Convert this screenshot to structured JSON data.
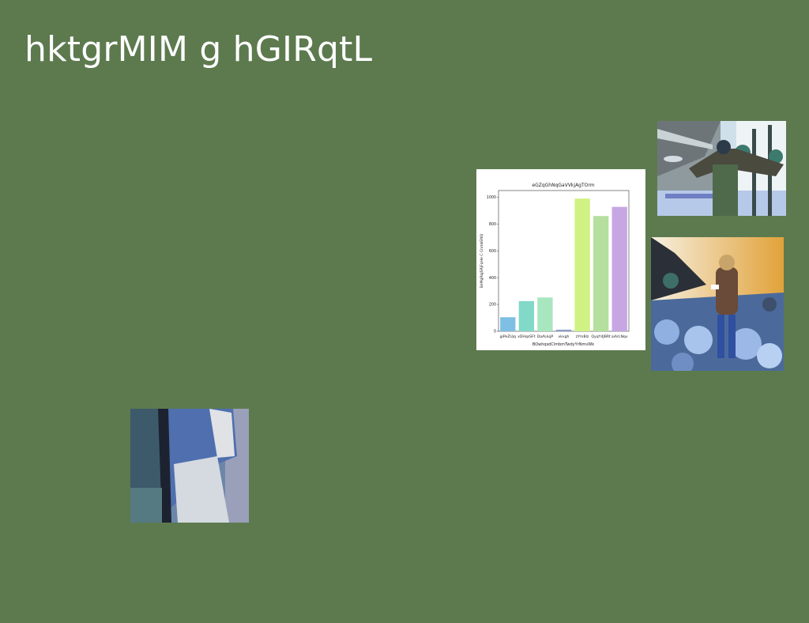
{
  "slide": {
    "title": "hktgrMIM g hGIRqtL"
  },
  "images": [
    {
      "name": "bridge-photo",
      "kind": "photo"
    },
    {
      "name": "desert-hiker-photo",
      "kind": "photo"
    },
    {
      "name": "figure-photo",
      "kind": "photo"
    }
  ],
  "chart_data": {
    "type": "bar",
    "title": "eGZqGhNqGaVVkjAgTOrm",
    "xlabel": "BOwhqsdClmbmTwdyYrNmvWk",
    "ylabel": "BsMgRqjSRjFqHe C CnmkENQ",
    "categories": [
      "giPeZUjq",
      "xDHqsSFt",
      "DaALkqP",
      "vkvgh",
      "zYmBlz",
      "QyqYdJBRt",
      "aiArLNqv"
    ],
    "values": [
      105,
      225,
      252,
      12,
      990,
      860,
      928
    ],
    "colors": [
      "#7fbfe3",
      "#82d9c8",
      "#a8e6c0",
      "#8e9fc9",
      "#cff283",
      "#b5df9d",
      "#c7a7e3"
    ],
    "yticks": [
      0,
      200,
      400,
      600,
      800,
      1000
    ],
    "ylim": [
      0,
      1050
    ],
    "grid": false,
    "legend": "none"
  }
}
